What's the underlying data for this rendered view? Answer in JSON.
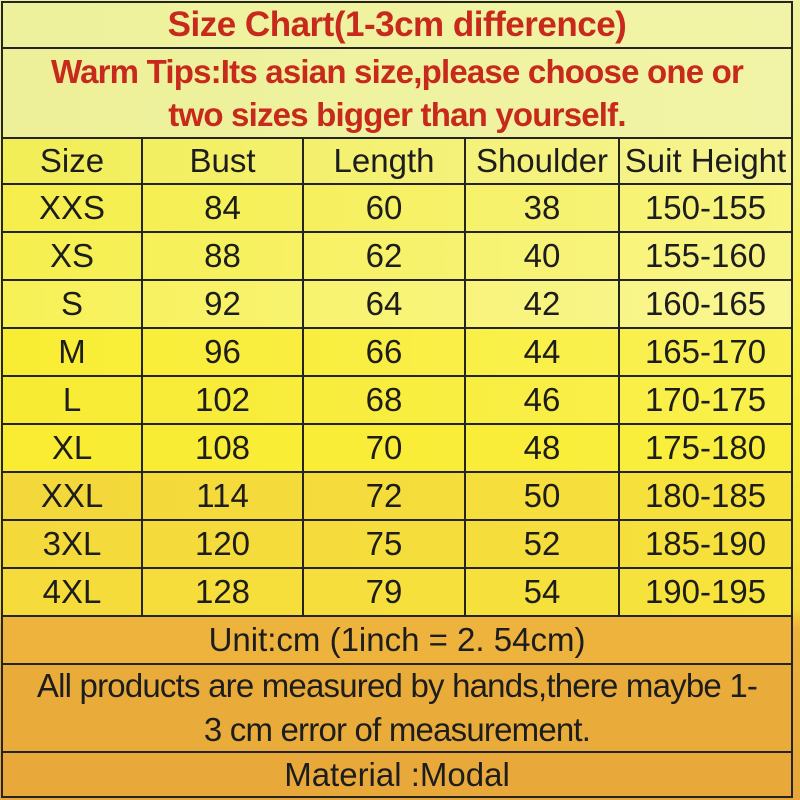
{
  "title": "Size Chart(1-3cm difference)",
  "warm_tips": {
    "lines": [
      "Warm Tips:Its asian size,please choose one or",
      "two sizes bigger than yourself."
    ]
  },
  "table": {
    "headers": [
      "Size",
      "Bust",
      "Length",
      "Shoulder",
      "Suit Height"
    ],
    "rows": [
      [
        "XXS",
        "84",
        "60",
        "38",
        "150-155"
      ],
      [
        "XS",
        "88",
        "62",
        "40",
        "155-160"
      ],
      [
        "S",
        "92",
        "64",
        "42",
        "160-165"
      ],
      [
        "M",
        "96",
        "66",
        "44",
        "165-170"
      ],
      [
        "L",
        "102",
        "68",
        "46",
        "170-175"
      ],
      [
        "XL",
        "108",
        "70",
        "48",
        "175-180"
      ],
      [
        "XXL",
        "114",
        "72",
        "50",
        "180-185"
      ],
      [
        "3XL",
        "120",
        "75",
        "52",
        "185-190"
      ],
      [
        "4XL",
        "128",
        "79",
        "54",
        "190-195"
      ]
    ]
  },
  "notes": {
    "unit": "Unit:cm (1inch = 2. 54cm)",
    "measurement_lines": [
      "All products are measured by hands,there maybe 1-",
      "3 cm error of measurement."
    ],
    "material": "Material :Modal"
  },
  "chart_data": {
    "type": "table",
    "title": "Size Chart(1-3cm difference)",
    "columns": [
      "Size",
      "Bust",
      "Length",
      "Shoulder",
      "Suit Height"
    ],
    "rows": [
      [
        "XXS",
        84,
        60,
        38,
        "150-155"
      ],
      [
        "XS",
        88,
        62,
        40,
        "155-160"
      ],
      [
        "S",
        92,
        64,
        42,
        "160-165"
      ],
      [
        "M",
        96,
        66,
        44,
        "165-170"
      ],
      [
        "L",
        102,
        68,
        46,
        "170-175"
      ],
      [
        "XL",
        108,
        70,
        48,
        "175-180"
      ],
      [
        "XXL",
        114,
        72,
        50,
        "180-185"
      ],
      [
        "3XL",
        120,
        75,
        52,
        "185-190"
      ],
      [
        "4XL",
        128,
        79,
        54,
        "190-195"
      ]
    ],
    "unit": "cm"
  },
  "colors": {
    "accent_red": "#c7291c",
    "text_black": "#1d1d1d",
    "border_black": "#242424",
    "bg_pale": "#eff2a0",
    "bg_yellow": "#f9ee3c",
    "bg_gold": "#f5db3a",
    "bg_orange_light": "#edb33d",
    "bg_orange": "#e9ac3b",
    "bg_orange_dark": "#e8a93a"
  }
}
